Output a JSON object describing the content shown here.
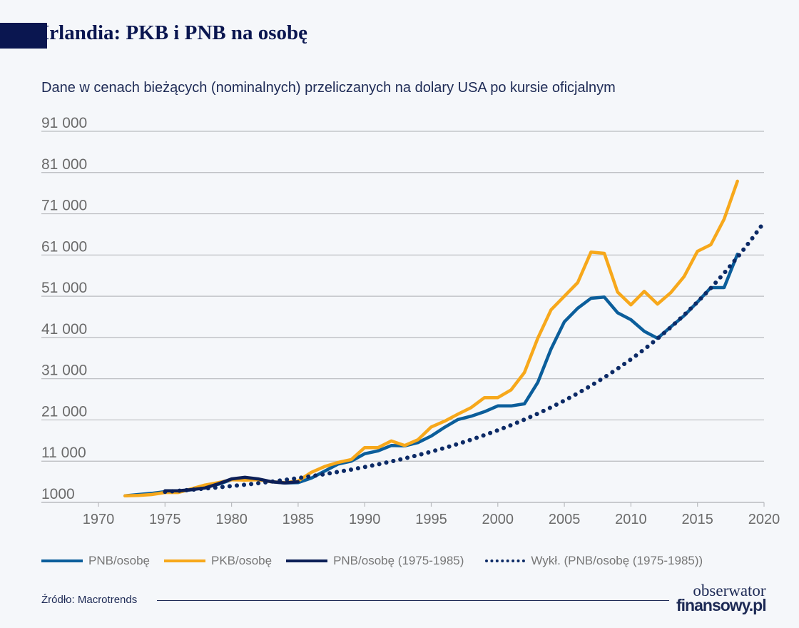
{
  "header": {
    "title": "Irlandia: PKB i PNB na osobę",
    "subtitle": "Dane w cenach bieżących (nominalnych) przeliczanych na dolary USA po kursie oficjalnym"
  },
  "footer": {
    "source": "Źródło: Macrotrends",
    "logo_line1": "obserwator",
    "logo_line2": "finansowy.pl"
  },
  "colors": {
    "pnb": "#0b5e9b",
    "pkb": "#f7a81b",
    "pnb_1975_1985": "#0c1f57",
    "trend": "#0c2a66",
    "grid": "#b9bbbf",
    "text": "#6b6b6b",
    "title": "#0a1650"
  },
  "chart_data": {
    "type": "line",
    "title": "Irlandia: PKB i PNB na osobę",
    "xlim": [
      1970,
      2020
    ],
    "ylim": [
      1000,
      91000
    ],
    "x_ticks": [
      "1970",
      "1975",
      "1980",
      "1985",
      "1990",
      "1995",
      "2000",
      "2005",
      "2010",
      "2015",
      "2020"
    ],
    "y_ticks": [
      "1000",
      "11 000",
      "21 000",
      "31 000",
      "41 000",
      "51 000",
      "61 000",
      "71 000",
      "81 000",
      "91 000"
    ],
    "grid": true,
    "legend_position": "bottom",
    "series": [
      {
        "name": "PNB/osobę",
        "style": "solid",
        "x": [
          1972,
          1973,
          1974,
          1975,
          1976,
          1977,
          1978,
          1979,
          1980,
          1981,
          1982,
          1983,
          1984,
          1985,
          1986,
          1987,
          1988,
          1989,
          1990,
          1991,
          1992,
          1993,
          1994,
          1995,
          1996,
          1997,
          1998,
          1999,
          2000,
          2001,
          2002,
          2003,
          2004,
          2005,
          2006,
          2007,
          2008,
          2009,
          2010,
          2011,
          2012,
          2013,
          2014,
          2015,
          2016,
          2017,
          2018
        ],
        "values": [
          2600,
          2900,
          3200,
          3600,
          3600,
          4100,
          4700,
          5400,
          6500,
          6700,
          6500,
          6000,
          5700,
          5800,
          6900,
          8600,
          10300,
          11000,
          12800,
          13500,
          14800,
          14700,
          15500,
          17100,
          19200,
          21100,
          21900,
          23000,
          24400,
          24400,
          24900,
          30100,
          38200,
          44800,
          48100,
          50500,
          50800,
          47000,
          45300,
          42500,
          40800,
          43600,
          46300,
          49600,
          53100,
          53100,
          61200
        ]
      },
      {
        "name": "PKB/osobę",
        "style": "solid",
        "x": [
          1972,
          1973,
          1974,
          1975,
          1976,
          1977,
          1978,
          1979,
          1980,
          1981,
          1982,
          1983,
          1984,
          1985,
          1986,
          1987,
          1988,
          1989,
          1990,
          1991,
          1992,
          1993,
          1994,
          1995,
          1996,
          1997,
          1998,
          1999,
          2000,
          2001,
          2002,
          2003,
          2004,
          2005,
          2006,
          2007,
          2008,
          2009,
          2010,
          2011,
          2012,
          2013,
          2014,
          2015,
          2016,
          2017,
          2018
        ],
        "values": [
          2600,
          2700,
          2900,
          3400,
          3400,
          4300,
          5200,
          5800,
          6500,
          6400,
          6500,
          6000,
          5800,
          6200,
          8300,
          9700,
          10700,
          11400,
          14300,
          14300,
          15900,
          14800,
          16200,
          19300,
          20700,
          22400,
          24000,
          26400,
          26400,
          28300,
          32500,
          40800,
          47700,
          51000,
          54300,
          61700,
          61400,
          52000,
          48900,
          52200,
          49100,
          51900,
          55800,
          61900,
          63500,
          69700,
          78900
        ]
      },
      {
        "name": "PNB/osobę (1975-1985)",
        "style": "solid",
        "x": [
          1975,
          1976,
          1977,
          1978,
          1979,
          1980,
          1981,
          1982,
          1983,
          1984,
          1985
        ],
        "values": [
          3800,
          3800,
          4100,
          4500,
          5500,
          6700,
          7100,
          6700,
          6000,
          5700,
          6000
        ]
      },
      {
        "name": "Wykł. (PNB/osobę (1975-1985))",
        "style": "dotted",
        "x": [
          1975,
          1976,
          1977,
          1978,
          1979,
          1980,
          1981,
          1982,
          1983,
          1984,
          1985,
          1986,
          1987,
          1988,
          1989,
          1990,
          1991,
          1992,
          1993,
          1994,
          1995,
          1996,
          1997,
          1998,
          1999,
          2000,
          2001,
          2002,
          2003,
          2004,
          2005,
          2006,
          2007,
          2008,
          2009,
          2010,
          2011,
          2012,
          2013,
          2014,
          2015,
          2016,
          2017,
          2018,
          2019,
          2020
        ],
        "values": [
          3570,
          3810,
          4070,
          4350,
          4650,
          4960,
          5300,
          5660,
          6040,
          6450,
          6890,
          7360,
          7860,
          8400,
          8970,
          9580,
          10230,
          10930,
          11670,
          12460,
          13310,
          14210,
          15180,
          16210,
          17320,
          18490,
          19750,
          21090,
          22530,
          24060,
          25700,
          27440,
          29310,
          31300,
          33430,
          35700,
          38130,
          40720,
          43490,
          46450,
          49610,
          52980,
          56590,
          60430,
          64540,
          68930
        ]
      }
    ]
  }
}
